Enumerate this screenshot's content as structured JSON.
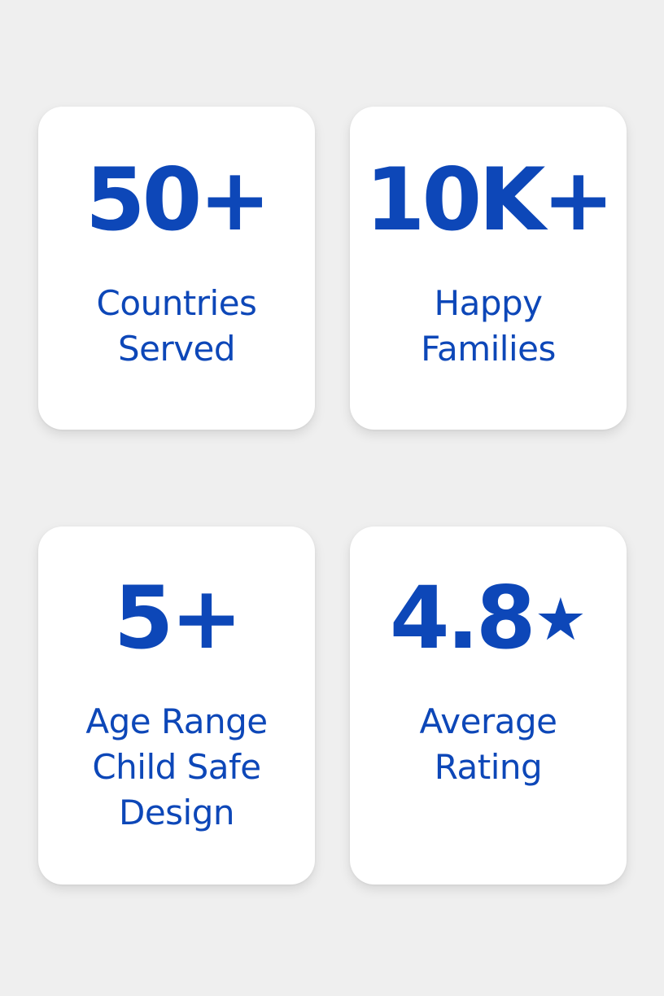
{
  "stats": [
    {
      "value": "50+",
      "label_lines": [
        "Countries",
        "Served"
      ]
    },
    {
      "value": "10K+",
      "label_lines": [
        "Happy",
        "Families"
      ]
    },
    {
      "value": "5+",
      "label_lines": [
        "Age Range",
        "Child Safe",
        "Design"
      ]
    },
    {
      "value": "4.8",
      "value_suffix_icon": "star-icon",
      "label_lines": [
        "Average",
        "Rating"
      ]
    }
  ],
  "colors": {
    "accent": "#0d47b8",
    "card_background": "#ffffff",
    "page_background": "#efefef"
  }
}
